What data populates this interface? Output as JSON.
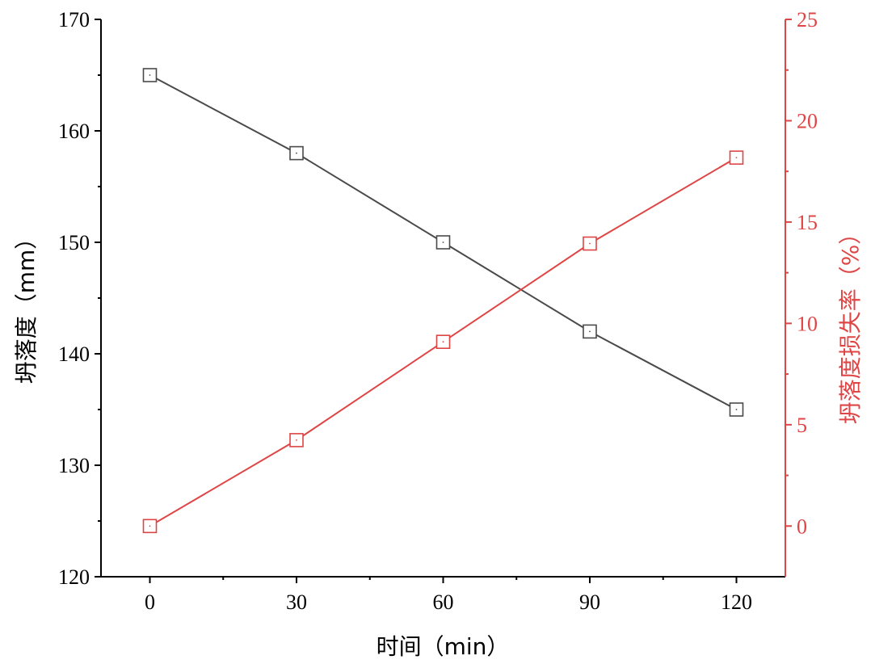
{
  "chart_data": {
    "type": "line",
    "xlabel": "时间（min）",
    "ylabel_left": "坍落度（mm）",
    "ylabel_right": "坍落度损失率（%）",
    "x": [
      0,
      30,
      60,
      90,
      120
    ],
    "xlim": [
      -10,
      130
    ],
    "xticks": [
      0,
      30,
      60,
      90,
      120
    ],
    "xticks_minor": [
      15,
      45,
      75,
      105
    ],
    "ylim_left": [
      120,
      170
    ],
    "yticks_left": [
      120,
      130,
      140,
      150,
      160,
      170
    ],
    "ylim_right": [
      -2.5,
      25
    ],
    "yticks_right": [
      0,
      5,
      10,
      15,
      20,
      25
    ],
    "grid": false,
    "series": [
      {
        "axis": "left",
        "color": "#4a4a4a",
        "marker": "square-open",
        "values": [
          165,
          158,
          150,
          142,
          135
        ]
      },
      {
        "axis": "right",
        "color": "#e04545",
        "marker": "square-open",
        "values": [
          0,
          4.24,
          9.09,
          13.94,
          18.18
        ]
      }
    ],
    "colors": {
      "left_axis": "#000000",
      "right_axis": "#e04545"
    }
  }
}
